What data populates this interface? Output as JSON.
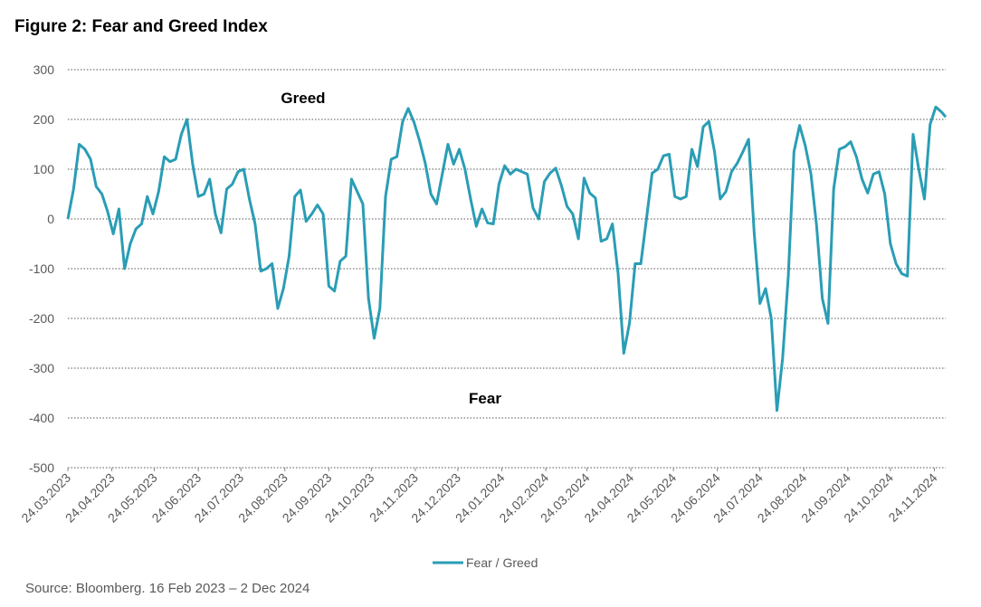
{
  "chart_data": {
    "type": "line",
    "title": "Figure 2: Fear and Greed Index",
    "source": "Source: Bloomberg. 16 Feb 2023 – 2 Dec 2024",
    "annotations": [
      "Greed",
      "Fear"
    ],
    "grid": true,
    "legend": "bottom",
    "x": [
      "2023-03-24",
      "2023-03-28",
      "2023-04-01",
      "2023-04-05",
      "2023-04-09",
      "2023-04-13",
      "2023-04-17",
      "2023-04-21",
      "2023-04-25",
      "2023-04-29",
      "2023-05-03",
      "2023-05-07",
      "2023-05-11",
      "2023-05-15",
      "2023-05-19",
      "2023-05-23",
      "2023-05-27",
      "2023-05-31",
      "2023-06-04",
      "2023-06-08",
      "2023-06-12",
      "2023-06-16",
      "2023-06-20",
      "2023-06-24",
      "2023-06-28",
      "2023-07-02",
      "2023-07-06",
      "2023-07-10",
      "2023-07-14",
      "2023-07-18",
      "2023-07-22",
      "2023-07-26",
      "2023-07-30",
      "2023-08-03",
      "2023-08-07",
      "2023-08-11",
      "2023-08-15",
      "2023-08-19",
      "2023-08-23",
      "2023-08-27",
      "2023-08-31",
      "2023-09-04",
      "2023-09-08",
      "2023-09-12",
      "2023-09-16",
      "2023-09-20",
      "2023-09-24",
      "2023-09-28",
      "2023-10-02",
      "2023-10-06",
      "2023-10-10",
      "2023-10-14",
      "2023-10-18",
      "2023-10-22",
      "2023-10-26",
      "2023-10-30",
      "2023-11-03",
      "2023-11-07",
      "2023-11-11",
      "2023-11-15",
      "2023-11-19",
      "2023-11-23",
      "2023-11-27",
      "2023-12-01",
      "2023-12-05",
      "2023-12-09",
      "2023-12-13",
      "2023-12-17",
      "2023-12-21",
      "2023-12-25",
      "2023-12-29",
      "2024-01-02",
      "2024-01-06",
      "2024-01-10",
      "2024-01-14",
      "2024-01-18",
      "2024-01-22",
      "2024-01-26",
      "2024-01-30",
      "2024-02-03",
      "2024-02-07",
      "2024-02-11",
      "2024-02-15",
      "2024-02-19",
      "2024-02-23",
      "2024-02-27",
      "2024-03-02",
      "2024-03-06",
      "2024-03-10",
      "2024-03-14",
      "2024-03-18",
      "2024-03-22",
      "2024-03-26",
      "2024-03-30",
      "2024-04-03",
      "2024-04-07",
      "2024-04-11",
      "2024-04-15",
      "2024-04-19",
      "2024-04-23",
      "2024-04-27",
      "2024-05-01",
      "2024-05-05",
      "2024-05-09",
      "2024-05-13",
      "2024-05-17",
      "2024-05-21",
      "2024-05-25",
      "2024-05-29",
      "2024-06-02",
      "2024-06-06",
      "2024-06-10",
      "2024-06-14",
      "2024-06-18",
      "2024-06-22",
      "2024-06-26",
      "2024-06-30",
      "2024-07-04",
      "2024-07-08",
      "2024-07-12",
      "2024-07-16",
      "2024-07-20",
      "2024-07-24",
      "2024-07-28",
      "2024-08-01",
      "2024-08-05",
      "2024-08-09",
      "2024-08-13",
      "2024-08-17",
      "2024-08-21",
      "2024-08-25",
      "2024-08-29",
      "2024-09-02",
      "2024-09-06",
      "2024-09-10",
      "2024-09-14",
      "2024-09-18",
      "2024-09-22",
      "2024-09-26",
      "2024-09-30",
      "2024-10-04",
      "2024-10-08",
      "2024-10-12",
      "2024-10-16",
      "2024-10-20",
      "2024-10-24",
      "2024-10-28",
      "2024-11-01",
      "2024-11-05",
      "2024-11-09",
      "2024-11-13",
      "2024-11-17",
      "2024-11-21",
      "2024-11-25",
      "2024-11-29",
      "2024-12-02"
    ],
    "series": [
      {
        "name": "Fear / Greed",
        "color": "#2a9db5",
        "values": [
          0,
          60,
          150,
          140,
          120,
          65,
          50,
          15,
          -30,
          20,
          -100,
          -50,
          -20,
          -10,
          45,
          10,
          55,
          125,
          115,
          120,
          170,
          200,
          110,
          45,
          50,
          80,
          10,
          -28,
          60,
          70,
          95,
          100,
          40,
          -10,
          -105,
          -100,
          -90,
          -180,
          -140,
          -75,
          45,
          58,
          -5,
          10,
          28,
          10,
          -135,
          -145,
          -85,
          -75,
          80,
          55,
          30,
          -160,
          -240,
          -180,
          45,
          120,
          125,
          195,
          222,
          195,
          157,
          112,
          50,
          30,
          90,
          150,
          110,
          140,
          100,
          40,
          -15,
          20,
          -8,
          -10,
          70,
          107,
          90,
          100,
          95,
          90,
          22,
          0,
          75,
          92,
          102,
          67,
          25,
          10,
          -40,
          82,
          52,
          42,
          -45,
          -40,
          -10,
          -110,
          -270,
          -210,
          -90,
          -90,
          0,
          92,
          100,
          127,
          130,
          45,
          40,
          45,
          140,
          105,
          185,
          196,
          135,
          40,
          55,
          95,
          112,
          135,
          160,
          -30,
          -170,
          -140,
          -200,
          -385,
          -280,
          -115,
          135,
          188,
          147,
          90,
          -15,
          -160,
          -210,
          60,
          140,
          145,
          155,
          125,
          80,
          52,
          90,
          95,
          50,
          -50,
          -90,
          -110,
          -115,
          170,
          100,
          40,
          190,
          225,
          215,
          205
        ]
      }
    ],
    "xlim": [
      "2023-03-24",
      "2024-12-02"
    ],
    "xticks": [
      {
        "value": "2023-03-24",
        "label": "24.03.2023"
      },
      {
        "value": "2023-04-24",
        "label": "24.04.2023"
      },
      {
        "value": "2023-05-24",
        "label": "24.05.2023"
      },
      {
        "value": "2023-06-24",
        "label": "24.06.2023"
      },
      {
        "value": "2023-07-24",
        "label": "24.07.2023"
      },
      {
        "value": "2023-08-24",
        "label": "24.08.2023"
      },
      {
        "value": "2023-09-24",
        "label": "24.09.2023"
      },
      {
        "value": "2023-10-24",
        "label": "24.10.2023"
      },
      {
        "value": "2023-11-24",
        "label": "24.11.2023"
      },
      {
        "value": "2023-12-24",
        "label": "24.12.2023"
      },
      {
        "value": "2024-01-24",
        "label": "24.01.2024"
      },
      {
        "value": "2024-02-24",
        "label": "24.02.2024"
      },
      {
        "value": "2024-03-24",
        "label": "24.03.2024"
      },
      {
        "value": "2024-04-24",
        "label": "24.04.2024"
      },
      {
        "value": "2024-05-24",
        "label": "24.05.2024"
      },
      {
        "value": "2024-06-24",
        "label": "24.06.2024"
      },
      {
        "value": "2024-07-24",
        "label": "24.07.2024"
      },
      {
        "value": "2024-08-24",
        "label": "24.08.2024"
      },
      {
        "value": "2024-09-24",
        "label": "24.09.2024"
      },
      {
        "value": "2024-10-24",
        "label": "24.10.2024"
      },
      {
        "value": "2024-11-24",
        "label": "24.11.2024"
      }
    ],
    "ylim": [
      -500,
      300
    ],
    "yticks": [
      -500,
      -400,
      -300,
      -200,
      -100,
      0,
      100,
      200,
      300
    ]
  }
}
